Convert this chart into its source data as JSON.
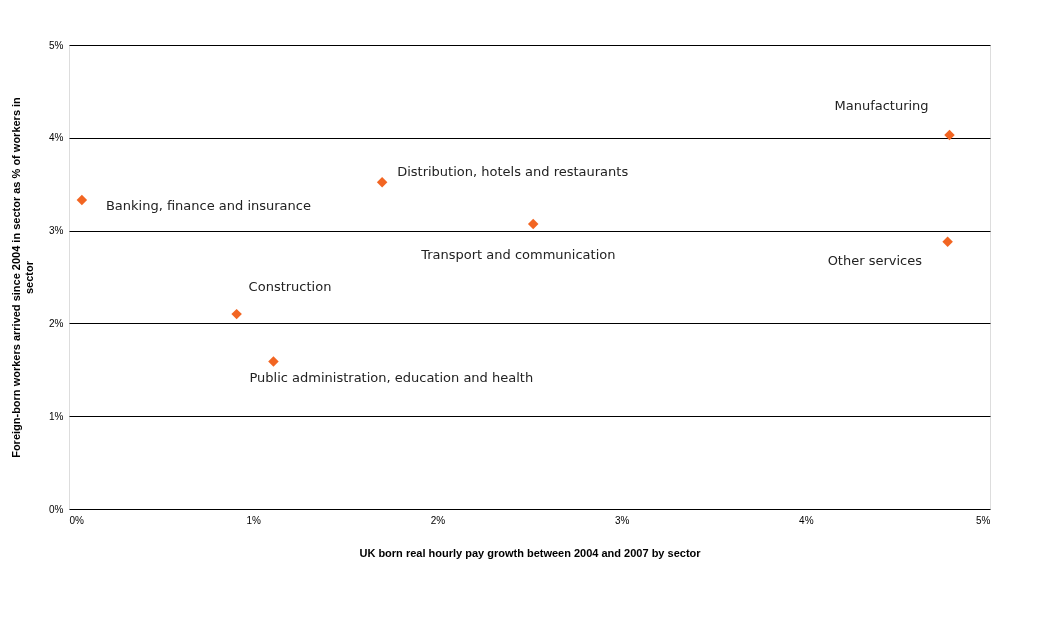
{
  "chart_data": {
    "type": "scatter",
    "xlabel": "UK born real hourly pay growth between 2004 and 2007 by sector",
    "ylabel": "Foreign-born workers arrived since 2004 in sector as % of workers in sector",
    "series": [
      {
        "color": "#f26522",
        "x": [
          0.07,
          1.7,
          2.52,
          4.78,
          4.77,
          0.91,
          1.11
        ],
        "values": [
          3.33,
          3.52,
          3.07,
          4.03,
          2.88,
          2.1,
          1.59
        ]
      }
    ],
    "marker": "diamond",
    "grid": "y",
    "xlim": [
      0,
      5
    ],
    "ylim": [
      0,
      5
    ],
    "xticks": [
      {
        "value": 0,
        "label": "0%"
      },
      {
        "value": 1,
        "label": "1%"
      },
      {
        "value": 2,
        "label": "2%"
      },
      {
        "value": 3,
        "label": "3%"
      },
      {
        "value": 4,
        "label": "4%"
      },
      {
        "value": 5,
        "label": "5%"
      }
    ],
    "yticks": [
      {
        "value": 0,
        "label": "0%"
      },
      {
        "value": 1,
        "label": "1%"
      },
      {
        "value": 2,
        "label": "2%"
      },
      {
        "value": 3,
        "label": "3%"
      },
      {
        "value": 4,
        "label": "4%"
      },
      {
        "value": 5,
        "label": "5%"
      }
    ],
    "annotations": [
      {
        "text": "Banking, finance and insurance",
        "x": 0.07,
        "y": 3.33
      },
      {
        "text": "Distribution, hotels and restaurants",
        "x": 1.7,
        "y": 3.52
      },
      {
        "text": "Transport and communication",
        "x": 2.52,
        "y": 3.07
      },
      {
        "text": "Manufacturing",
        "x": 4.78,
        "y": 4.03
      },
      {
        "text": "Other services",
        "x": 4.77,
        "y": 2.88
      },
      {
        "text": "Construction",
        "x": 0.91,
        "y": 2.1
      },
      {
        "text": "Public administration, education and health",
        "x": 1.11,
        "y": 1.59
      }
    ]
  }
}
